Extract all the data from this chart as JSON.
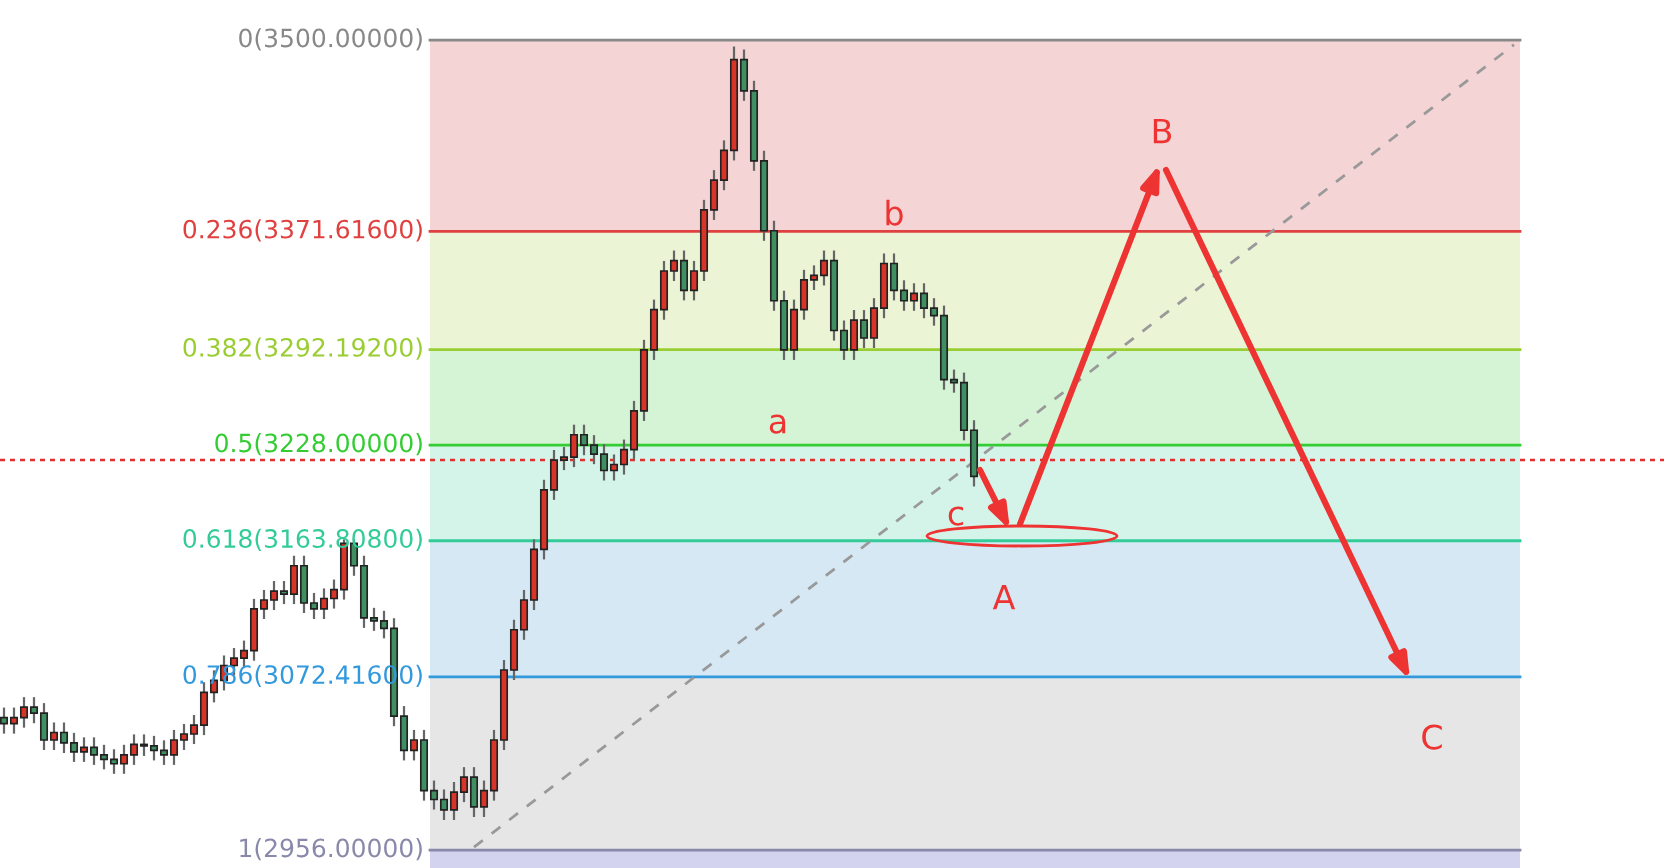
{
  "chart_data": {
    "type": "candlestick",
    "categories": [
      null,
      null,
      null,
      null,
      null,
      null,
      null,
      null,
      null,
      null,
      null,
      null,
      null,
      null,
      null,
      null,
      null,
      null,
      null,
      null,
      null,
      null,
      null,
      null,
      null,
      null,
      null,
      null,
      null,
      null,
      null,
      null,
      null,
      null,
      null,
      null,
      null,
      null,
      null,
      null,
      null,
      null,
      null,
      null,
      null,
      null,
      null,
      null,
      null,
      null,
      null,
      null,
      null,
      null,
      null,
      null,
      null,
      null,
      null,
      null,
      null,
      null,
      null,
      null,
      null,
      null,
      null,
      null,
      null,
      null,
      null,
      null,
      null,
      null,
      null,
      null,
      null,
      null,
      null,
      null,
      null,
      null,
      null,
      null,
      null,
      null,
      null,
      null,
      null,
      null,
      null,
      null,
      null,
      null,
      null,
      null,
      null,
      null,
      null,
      null,
      null,
      null,
      null,
      null,
      null,
      null,
      null,
      null,
      null,
      null,
      null,
      null,
      null,
      null,
      null,
      null,
      null,
      null,
      null,
      null,
      null,
      null,
      null,
      null,
      null,
      null,
      null,
      null,
      null,
      null,
      null,
      null,
      null,
      null,
      null,
      null,
      null,
      null,
      null,
      null,
      null,
      null,
      null,
      null,
      null,
      null,
      null,
      null,
      null,
      null,
      null,
      null
    ],
    "ohlc": [
      [
        3045,
        3051,
        3035,
        3041
      ],
      [
        3041,
        3051,
        3035,
        3045
      ],
      [
        3045,
        3058,
        3039,
        3052
      ],
      [
        3052,
        3058,
        3042,
        3048
      ],
      [
        3048,
        3054,
        3024,
        3030
      ],
      [
        3030,
        3041,
        3024,
        3035
      ],
      [
        3035,
        3041,
        3022,
        3028
      ],
      [
        3028,
        3034,
        3016,
        3022
      ],
      [
        3022,
        3031,
        3016,
        3025
      ],
      [
        3025,
        3031,
        3014,
        3020
      ],
      [
        3020,
        3026,
        3011,
        3017
      ],
      [
        3017,
        3023,
        3008,
        3014
      ],
      [
        3014,
        3026,
        3008,
        3020
      ],
      [
        3020,
        3033,
        3014,
        3027
      ],
      [
        3027,
        3033,
        3020,
        3026
      ],
      [
        3026,
        3032,
        3017,
        3023
      ],
      [
        3023,
        3029,
        3014,
        3020
      ],
      [
        3020,
        3036,
        3014,
        3030
      ],
      [
        3030,
        3040,
        3024,
        3034
      ],
      [
        3034,
        3046,
        3028,
        3040
      ],
      [
        3040,
        3068,
        3034,
        3062
      ],
      [
        3062,
        3076,
        3056,
        3070
      ],
      [
        3070,
        3086,
        3064,
        3080
      ],
      [
        3080,
        3091,
        3074,
        3085
      ],
      [
        3085,
        3096,
        3079,
        3090
      ],
      [
        3090,
        3124,
        3084,
        3118
      ],
      [
        3118,
        3130,
        3112,
        3124
      ],
      [
        3124,
        3136,
        3118,
        3130
      ],
      [
        3130,
        3136,
        3122,
        3128
      ],
      [
        3128,
        3153,
        3122,
        3147
      ],
      [
        3147,
        3153,
        3116,
        3122
      ],
      [
        3122,
        3128,
        3112,
        3118
      ],
      [
        3118,
        3131,
        3112,
        3125
      ],
      [
        3125,
        3137,
        3119,
        3131
      ],
      [
        3131,
        3164,
        3125,
        3162
      ],
      [
        3162,
        3164,
        3141,
        3147
      ],
      [
        3147,
        3153,
        3106,
        3112
      ],
      [
        3112,
        3118,
        3104,
        3110
      ],
      [
        3110,
        3116,
        3099,
        3105
      ],
      [
        3105,
        3111,
        3040,
        3046
      ],
      [
        3046,
        3052,
        3017,
        3023
      ],
      [
        3023,
        3036,
        3017,
        3030
      ],
      [
        3030,
        3036,
        2990,
        2996
      ],
      [
        2996,
        3002,
        2984,
        2990
      ],
      [
        2990,
        2996,
        2977,
        2983
      ],
      [
        2983,
        3001,
        2977,
        2995
      ],
      [
        2995,
        3011,
        2989,
        3005
      ],
      [
        3005,
        3011,
        2979,
        2985
      ],
      [
        2985,
        3002,
        2979,
        2996
      ],
      [
        2996,
        3036,
        2990,
        3030
      ],
      [
        3030,
        3083,
        3024,
        3077
      ],
      [
        3077,
        3110,
        3071,
        3104
      ],
      [
        3104,
        3130,
        3098,
        3124
      ],
      [
        3124,
        3164,
        3118,
        3158
      ],
      [
        3158,
        3204,
        3152,
        3198
      ],
      [
        3198,
        3224,
        3192,
        3218
      ],
      [
        3218,
        3226,
        3212,
        3220
      ],
      [
        3220,
        3241,
        3214,
        3235
      ],
      [
        3235,
        3241,
        3222,
        3228
      ],
      [
        3228,
        3234,
        3216,
        3222
      ],
      [
        3222,
        3228,
        3205,
        3211
      ],
      [
        3211,
        3221,
        3205,
        3215
      ],
      [
        3215,
        3231,
        3209,
        3225
      ],
      [
        3225,
        3257,
        3219,
        3251
      ],
      [
        3251,
        3298,
        3245,
        3292
      ],
      [
        3292,
        3325,
        3286,
        3319
      ],
      [
        3319,
        3351,
        3313,
        3345
      ],
      [
        3345,
        3358,
        3339,
        3352
      ],
      [
        3352,
        3358,
        3326,
        3332
      ],
      [
        3332,
        3351,
        3326,
        3345
      ],
      [
        3345,
        3392,
        3339,
        3386
      ],
      [
        3386,
        3412,
        3380,
        3406
      ],
      [
        3406,
        3432,
        3400,
        3426
      ],
      [
        3426,
        3495,
        3420,
        3487
      ],
      [
        3487,
        3493,
        3460,
        3466
      ],
      [
        3466,
        3472,
        3413,
        3419
      ],
      [
        3419,
        3425,
        3366,
        3372
      ],
      [
        3372,
        3378,
        3319,
        3325
      ],
      [
        3325,
        3331,
        3286,
        3292
      ],
      [
        3292,
        3325,
        3286,
        3319
      ],
      [
        3319,
        3345,
        3313,
        3339
      ],
      [
        3339,
        3348,
        3333,
        3342
      ],
      [
        3342,
        3358,
        3336,
        3352
      ],
      [
        3352,
        3358,
        3299,
        3305
      ],
      [
        3305,
        3311,
        3286,
        3292
      ],
      [
        3292,
        3318,
        3286,
        3312
      ],
      [
        3312,
        3318,
        3294,
        3300
      ],
      [
        3300,
        3326,
        3294,
        3320
      ],
      [
        3320,
        3356,
        3314,
        3350
      ],
      [
        3350,
        3356,
        3326,
        3332
      ],
      [
        3332,
        3338,
        3319,
        3325
      ],
      [
        3325,
        3336,
        3319,
        3330
      ],
      [
        3330,
        3336,
        3314,
        3320
      ],
      [
        3320,
        3326,
        3309,
        3315
      ],
      [
        3315,
        3321,
        3266,
        3272
      ],
      [
        3272,
        3278,
        3264,
        3270
      ],
      [
        3270,
        3276,
        3232,
        3238
      ],
      [
        3238,
        3244,
        3201,
        3207
      ],
      null,
      null,
      null,
      null,
      null,
      null,
      null,
      null,
      null,
      null,
      null,
      null,
      null,
      null,
      null,
      null,
      null,
      null,
      null,
      null,
      null,
      null,
      null,
      null,
      null,
      null,
      null,
      null,
      null,
      null,
      null,
      null,
      null,
      null,
      null,
      null,
      null,
      null,
      null,
      null,
      null,
      null,
      null,
      null,
      null,
      null,
      null,
      null,
      null,
      null,
      null,
      null,
      null,
      null
    ],
    "series": [
      {
        "type": "line",
        "values": [
          null,
          null,
          null,
          null,
          null,
          null,
          null,
          null,
          null,
          null,
          null,
          null,
          null,
          null,
          null,
          null,
          null,
          null,
          null,
          null,
          null,
          null,
          null,
          null,
          null,
          null,
          null,
          null,
          null,
          null,
          null,
          null,
          null,
          null,
          null,
          null,
          null,
          null,
          null,
          null,
          null,
          null,
          null,
          null,
          null,
          null,
          null,
          2958,
          null,
          null,
          null,
          null,
          null,
          null,
          null,
          null,
          null,
          null,
          null,
          null,
          null,
          null,
          null,
          null,
          null,
          null,
          null,
          null,
          null,
          null,
          null,
          null,
          null,
          null,
          null,
          null,
          null,
          null,
          null,
          null,
          null,
          null,
          null,
          null,
          null,
          null,
          null,
          null,
          null,
          null,
          null,
          null,
          null,
          null,
          null,
          null,
          null,
          null,
          null,
          null,
          null,
          null,
          null,
          null,
          null,
          null,
          null,
          null,
          null,
          null,
          null,
          null,
          null,
          null,
          null,
          null,
          null,
          null,
          null,
          null,
          null,
          null,
          null,
          null,
          null,
          null,
          null,
          null,
          null,
          null,
          null,
          null,
          null,
          null,
          null,
          null,
          null,
          null,
          null,
          null,
          null,
          null,
          null,
          null,
          null,
          null,
          null,
          null,
          null,
          null,
          null,
          3497
        ],
        "color": "#999999",
        "line_style": "dashed"
      }
    ],
    "ylim": [
      2944,
      3527
    ],
    "tick_labels": false,
    "grid": false,
    "ref_lines": [
      {
        "axis": "y",
        "value": 3500,
        "label": "0(3500.00000)",
        "color": "#888888"
      },
      {
        "axis": "y",
        "value": 3371.616,
        "label": "0.236(3371.61600)",
        "color": "#e04040"
      },
      {
        "axis": "y",
        "value": 3292.192,
        "label": "0.382(3292.19200)",
        "color": "#9acd32"
      },
      {
        "axis": "y",
        "value": 3228,
        "label": "0.5(3228.00000)",
        "color": "#33cc33"
      },
      {
        "axis": "y",
        "value": 3163.808,
        "label": "0.618(3163.80800)",
        "color": "#33cc99"
      },
      {
        "axis": "y",
        "value": 3072.416,
        "label": "0.786(3072.41600)",
        "color": "#3399dd"
      },
      {
        "axis": "y",
        "value": 2956,
        "label": "1(2956.00000)",
        "color": "#8888aa"
      },
      {
        "axis": "y",
        "value": 3218,
        "color": "#e03030",
        "line_style": "dotted"
      }
    ],
    "bands": [
      {
        "axis": "y",
        "from": 3371.616,
        "to": 3500,
        "color": "#f4d4d4"
      },
      {
        "axis": "y",
        "from": 3292.192,
        "to": 3371.616,
        "color": "#ebf5d5"
      },
      {
        "axis": "y",
        "from": 3228,
        "to": 3292.192,
        "color": "#d5f3d5"
      },
      {
        "axis": "y",
        "from": 3163.808,
        "to": 3228,
        "color": "#d5f4e9"
      },
      {
        "axis": "y",
        "from": 3072.416,
        "to": 3163.808,
        "color": "#d5e8f3"
      },
      {
        "axis": "y",
        "from": 2956,
        "to": 3072.416,
        "color": "#e6e6e6"
      },
      {
        "axis": "y",
        "from": 2944,
        "to": 2956,
        "color": "#d3d3f0"
      }
    ],
    "annotations": [
      "a",
      "b",
      "c",
      "A",
      "B",
      "C"
    ]
  }
}
